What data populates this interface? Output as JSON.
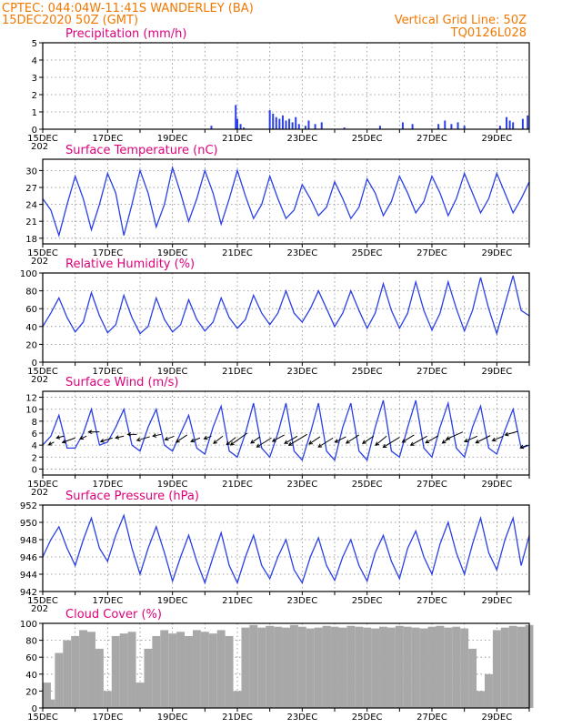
{
  "header": {
    "station": "CPTEC:   044:04W-11:41S   WANDERLEY (BA)",
    "run": "15DEC2020 50Z (GMT)",
    "grid_note": "Vertical Grid Line: 50Z",
    "code": "TQ0126L028"
  },
  "x_ticks": [
    "15DEC",
    "17DEC",
    "19DEC",
    "21DEC",
    "23DEC",
    "25DEC",
    "27DEC",
    "29DEC"
  ],
  "x_tick_days": [
    0,
    2,
    4,
    6,
    8,
    10,
    12,
    14
  ],
  "x_range": [
    0,
    15
  ],
  "year_fragment": "202",
  "colors": {
    "header": "#f07800",
    "title": "#e0007a",
    "series": "#2a40e6",
    "cloud": "#a8a8a8",
    "grid": "#888888"
  },
  "chart_data": [
    {
      "type": "bar",
      "title": "Precipitation (mm/h)",
      "ylim": [
        0,
        5
      ],
      "yticks": [
        0,
        1,
        2,
        3,
        4,
        5
      ],
      "grid": true,
      "x": [
        5.2,
        5.95,
        6.0,
        6.1,
        6.2,
        7.0,
        7.1,
        7.2,
        7.3,
        7.4,
        7.5,
        7.6,
        7.7,
        7.8,
        7.9,
        8.1,
        8.2,
        8.4,
        8.6,
        9.3,
        10.4,
        11.1,
        11.4,
        12.2,
        12.4,
        12.6,
        12.8,
        13.0,
        14.1,
        14.3,
        14.4,
        14.5,
        14.8,
        14.95
      ],
      "values": [
        0.2,
        1.4,
        0.6,
        0.3,
        0.1,
        1.1,
        0.9,
        0.7,
        0.6,
        0.8,
        0.5,
        0.6,
        0.4,
        0.7,
        0.3,
        0.2,
        0.5,
        0.3,
        0.4,
        0.1,
        0.2,
        0.4,
        0.3,
        0.3,
        0.5,
        0.3,
        0.4,
        0.2,
        0.2,
        0.7,
        0.5,
        0.4,
        0.6,
        0.8
      ]
    },
    {
      "type": "line",
      "title": "Surface Temperature (nC)",
      "ylim": [
        17,
        32
      ],
      "yticks": [
        18,
        21,
        24,
        27,
        30
      ],
      "grid": true,
      "x": [
        0,
        0.25,
        0.5,
        0.75,
        1,
        1.25,
        1.5,
        1.75,
        2,
        2.25,
        2.5,
        2.75,
        3,
        3.25,
        3.5,
        3.75,
        4,
        4.25,
        4.5,
        4.75,
        5,
        5.25,
        5.5,
        5.75,
        6,
        6.25,
        6.5,
        6.75,
        7,
        7.25,
        7.5,
        7.75,
        8,
        8.25,
        8.5,
        8.75,
        9,
        9.25,
        9.5,
        9.75,
        10,
        10.25,
        10.5,
        10.75,
        11,
        11.25,
        11.5,
        11.75,
        12,
        12.25,
        12.5,
        12.75,
        13,
        13.25,
        13.5,
        13.75,
        14,
        14.25,
        14.5,
        14.75,
        15
      ],
      "values": [
        25,
        23,
        18.5,
        24,
        29,
        25,
        19.5,
        24,
        29.5,
        26,
        18.5,
        24,
        30,
        26,
        20,
        24,
        30.5,
        26,
        21,
        25,
        30,
        26,
        20.5,
        25,
        30,
        25.5,
        21.5,
        24,
        29,
        25,
        21.5,
        23,
        27.5,
        25,
        22,
        23.5,
        28,
        25,
        21.5,
        23.5,
        28.5,
        26,
        22,
        24.5,
        29,
        26,
        22.5,
        24.5,
        29,
        26,
        22,
        25,
        29.5,
        26,
        22.5,
        25,
        29.5,
        26,
        22.5,
        25,
        28
      ]
    },
    {
      "type": "line",
      "title": "Relative Humidity (%)",
      "ylim": [
        0,
        100
      ],
      "yticks": [
        0,
        20,
        40,
        60,
        80,
        100
      ],
      "grid": true,
      "x": [
        0,
        0.25,
        0.5,
        0.75,
        1,
        1.25,
        1.5,
        1.75,
        2,
        2.25,
        2.5,
        2.75,
        3,
        3.25,
        3.5,
        3.75,
        4,
        4.25,
        4.5,
        4.75,
        5,
        5.25,
        5.5,
        5.75,
        6,
        6.25,
        6.5,
        6.75,
        7,
        7.25,
        7.5,
        7.75,
        8,
        8.25,
        8.5,
        8.75,
        9,
        9.25,
        9.5,
        9.75,
        10,
        10.25,
        10.5,
        10.75,
        11,
        11.25,
        11.5,
        11.75,
        12,
        12.25,
        12.5,
        12.75,
        13,
        13.25,
        13.5,
        13.75,
        14,
        14.25,
        14.5,
        14.75,
        15
      ],
      "values": [
        40,
        55,
        72,
        50,
        34,
        45,
        78,
        52,
        33,
        42,
        75,
        50,
        32,
        40,
        72,
        48,
        34,
        42,
        70,
        48,
        35,
        45,
        72,
        50,
        38,
        48,
        75,
        55,
        42,
        55,
        80,
        55,
        45,
        60,
        80,
        60,
        40,
        55,
        80,
        58,
        38,
        55,
        88,
        58,
        38,
        55,
        90,
        58,
        36,
        55,
        90,
        60,
        35,
        58,
        95,
        60,
        32,
        65,
        97,
        58,
        52
      ]
    },
    {
      "type": "line",
      "title": "Surface Wind (m/s)",
      "ylim": [
        -1,
        13
      ],
      "yticks": [
        0,
        2,
        4,
        6,
        8,
        10,
        12
      ],
      "grid": true,
      "x": [
        0,
        0.25,
        0.5,
        0.75,
        1,
        1.25,
        1.5,
        1.75,
        2,
        2.25,
        2.5,
        2.75,
        3,
        3.25,
        3.5,
        3.75,
        4,
        4.25,
        4.5,
        4.75,
        5,
        5.25,
        5.5,
        5.75,
        6,
        6.25,
        6.5,
        6.75,
        7,
        7.25,
        7.5,
        7.75,
        8,
        8.25,
        8.5,
        8.75,
        9,
        9.25,
        9.5,
        9.75,
        10,
        10.25,
        10.5,
        10.75,
        11,
        11.25,
        11.5,
        11.75,
        12,
        12.25,
        12.5,
        12.75,
        13,
        13.25,
        13.5,
        13.75,
        14,
        14.25,
        14.5,
        14.75,
        15
      ],
      "values": [
        4,
        5.5,
        9,
        3.5,
        3.5,
        6,
        10,
        4,
        4.5,
        7,
        10,
        4,
        3,
        7,
        10,
        4,
        3,
        6,
        9,
        3.5,
        2.5,
        7,
        10.5,
        3,
        2,
        6,
        11,
        3.5,
        2,
        6,
        11,
        3,
        1.5,
        6,
        11,
        3,
        1.5,
        7,
        11,
        3,
        1.5,
        7,
        11.5,
        3,
        2,
        7,
        11.5,
        3.5,
        2,
        7,
        11,
        3.5,
        2,
        7,
        10.5,
        3.5,
        2.5,
        6.5,
        10,
        3.5,
        4
      ],
      "arrows": [
        {
          "x": 0.35,
          "y": 4.5,
          "dx": -6,
          "dy": 3
        },
        {
          "x": 0.65,
          "y": 5.5,
          "dx": -8,
          "dy": 2
        },
        {
          "x": 1.0,
          "y": 5.2,
          "dx": -14,
          "dy": 5
        },
        {
          "x": 1.35,
          "y": 5.5,
          "dx": -7,
          "dy": 3
        },
        {
          "x": 1.75,
          "y": 6.2,
          "dx": -12,
          "dy": 0
        },
        {
          "x": 2.15,
          "y": 5.2,
          "dx": -13,
          "dy": 4
        },
        {
          "x": 2.5,
          "y": 5.5,
          "dx": -9,
          "dy": 2
        },
        {
          "x": 2.9,
          "y": 5.8,
          "dx": -10,
          "dy": 0
        },
        {
          "x": 3.3,
          "y": 5.4,
          "dx": -14,
          "dy": 4
        },
        {
          "x": 3.65,
          "y": 5.8,
          "dx": -9,
          "dy": 2
        },
        {
          "x": 4.05,
          "y": 5.5,
          "dx": -10,
          "dy": 4
        },
        {
          "x": 4.45,
          "y": 5.7,
          "dx": -12,
          "dy": 8
        },
        {
          "x": 4.85,
          "y": 5.2,
          "dx": -10,
          "dy": 4
        },
        {
          "x": 5.2,
          "y": 5.5,
          "dx": -8,
          "dy": 3
        },
        {
          "x": 5.55,
          "y": 5.5,
          "dx": -10,
          "dy": 8
        },
        {
          "x": 5.95,
          "y": 5.3,
          "dx": -10,
          "dy": 8
        },
        {
          "x": 6.3,
          "y": 6.0,
          "dx": -18,
          "dy": 13
        },
        {
          "x": 6.7,
          "y": 5.4,
          "dx": -10,
          "dy": 7
        },
        {
          "x": 7.05,
          "y": 5.2,
          "dx": -16,
          "dy": 10
        },
        {
          "x": 7.45,
          "y": 5.7,
          "dx": -13,
          "dy": 7
        },
        {
          "x": 7.85,
          "y": 5.5,
          "dx": -14,
          "dy": 8
        },
        {
          "x": 8.15,
          "y": 5.8,
          "dx": -20,
          "dy": 12
        },
        {
          "x": 8.55,
          "y": 5.4,
          "dx": -12,
          "dy": 8
        },
        {
          "x": 8.95,
          "y": 5.2,
          "dx": -16,
          "dy": 10
        },
        {
          "x": 9.35,
          "y": 5.4,
          "dx": -12,
          "dy": 6
        },
        {
          "x": 9.75,
          "y": 5.7,
          "dx": -14,
          "dy": 9
        },
        {
          "x": 10.2,
          "y": 5.5,
          "dx": -12,
          "dy": 8
        },
        {
          "x": 10.6,
          "y": 5.5,
          "dx": -12,
          "dy": 10
        },
        {
          "x": 11.0,
          "y": 5.3,
          "dx": -18,
          "dy": 11
        },
        {
          "x": 11.45,
          "y": 5.7,
          "dx": -13,
          "dy": 8
        },
        {
          "x": 11.85,
          "y": 5.5,
          "dx": -18,
          "dy": 10
        },
        {
          "x": 12.2,
          "y": 5.6,
          "dx": -14,
          "dy": 8
        },
        {
          "x": 12.6,
          "y": 5.4,
          "dx": -10,
          "dy": 7
        },
        {
          "x": 12.95,
          "y": 6.2,
          "dx": -18,
          "dy": 8
        },
        {
          "x": 13.4,
          "y": 5.5,
          "dx": -14,
          "dy": 6
        },
        {
          "x": 13.8,
          "y": 5.6,
          "dx": -16,
          "dy": 8
        },
        {
          "x": 14.2,
          "y": 5.5,
          "dx": -12,
          "dy": 5
        },
        {
          "x": 14.65,
          "y": 6.3,
          "dx": -14,
          "dy": 4
        },
        {
          "x": 14.95,
          "y": 4.0,
          "dx": -8,
          "dy": 3
        }
      ]
    },
    {
      "type": "line",
      "title": "Surface Pressure (hPa)",
      "ylim": [
        942,
        952
      ],
      "yticks": [
        942,
        944,
        946,
        948,
        950,
        952
      ],
      "grid": true,
      "x": [
        0,
        0.25,
        0.5,
        0.75,
        1,
        1.25,
        1.5,
        1.75,
        2,
        2.25,
        2.5,
        2.75,
        3,
        3.25,
        3.5,
        3.75,
        4,
        4.25,
        4.5,
        4.75,
        5,
        5.25,
        5.5,
        5.75,
        6,
        6.25,
        6.5,
        6.75,
        7,
        7.25,
        7.5,
        7.75,
        8,
        8.25,
        8.5,
        8.75,
        9,
        9.25,
        9.5,
        9.75,
        10,
        10.25,
        10.5,
        10.75,
        11,
        11.25,
        11.5,
        11.75,
        12,
        12.25,
        12.5,
        12.75,
        13,
        13.25,
        13.5,
        13.75,
        14,
        14.25,
        14.5,
        14.75,
        15
      ],
      "values": [
        946,
        948,
        949.5,
        947,
        945,
        948,
        950.5,
        947,
        945.5,
        948.5,
        950.8,
        947,
        944,
        947,
        949.5,
        946.5,
        943.2,
        946,
        948.5,
        945.5,
        943,
        946,
        948.8,
        945,
        943,
        946,
        948.5,
        945,
        943.5,
        946,
        948,
        944.5,
        943,
        946,
        948.2,
        945,
        943.3,
        946,
        948,
        945,
        943.2,
        946.5,
        948.5,
        945.5,
        943.5,
        947,
        949,
        946,
        944,
        947.5,
        950,
        946.5,
        944,
        947.5,
        950.5,
        946.5,
        944.5,
        948,
        950.5,
        945,
        948.5
      ]
    },
    {
      "type": "bar",
      "title": "Cloud Cover (%)",
      "ylim": [
        0,
        100
      ],
      "yticks": [
        0,
        20,
        40,
        60,
        80,
        100
      ],
      "grid": true,
      "x": [
        0,
        0.25,
        0.5,
        0.75,
        1,
        1.25,
        1.5,
        1.75,
        2,
        2.25,
        2.5,
        2.75,
        3,
        3.25,
        3.5,
        3.75,
        4,
        4.25,
        4.5,
        4.75,
        5,
        5.25,
        5.5,
        5.75,
        6,
        6.25,
        6.5,
        6.75,
        7,
        7.25,
        7.5,
        7.75,
        8,
        8.25,
        8.5,
        8.75,
        9,
        9.25,
        9.5,
        9.75,
        10,
        10.25,
        10.5,
        10.75,
        11,
        11.25,
        11.5,
        11.75,
        12,
        12.25,
        12.5,
        12.75,
        13,
        13.25,
        13.5,
        13.75,
        14,
        14.25,
        14.5,
        14.75,
        15
      ],
      "values": [
        30,
        10,
        65,
        80,
        85,
        92,
        90,
        70,
        20,
        85,
        88,
        90,
        30,
        70,
        85,
        92,
        88,
        90,
        85,
        92,
        90,
        88,
        92,
        85,
        20,
        95,
        98,
        95,
        97,
        96,
        95,
        98,
        96,
        94,
        95,
        97,
        96,
        95,
        97,
        96,
        95,
        94,
        96,
        95,
        97,
        96,
        95,
        94,
        96,
        97,
        95,
        96,
        94,
        70,
        20,
        40,
        92,
        95,
        97,
        96,
        98
      ]
    }
  ]
}
